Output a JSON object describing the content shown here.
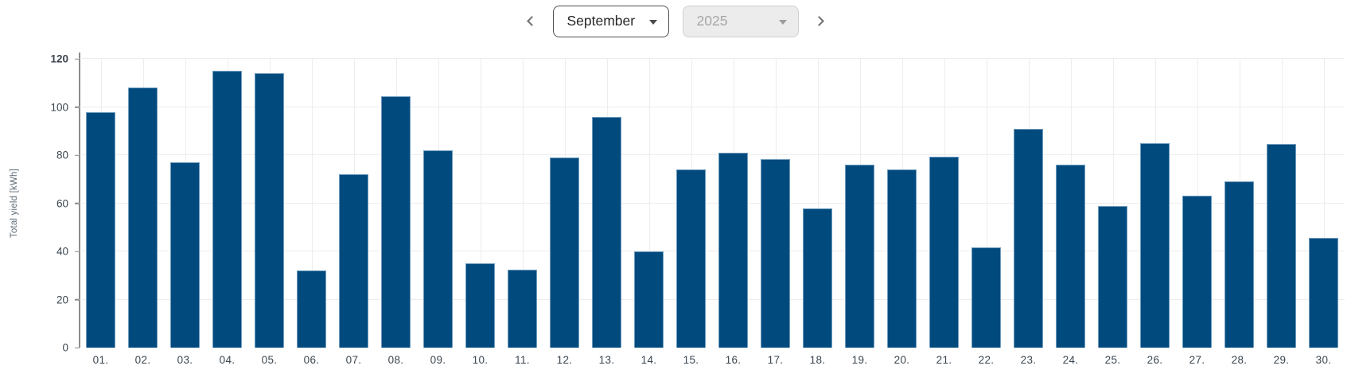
{
  "header": {
    "month_select": {
      "value": "September",
      "disabled": false
    },
    "year_select": {
      "value": "2025",
      "disabled": true
    }
  },
  "chart_data": {
    "type": "bar",
    "title": "",
    "xlabel": "",
    "ylabel": "Total yield [kWh]",
    "ylim": [
      0,
      120
    ],
    "yticks": [
      0,
      20,
      40,
      60,
      80,
      100,
      120
    ],
    "grid": true,
    "legend": false,
    "categories": [
      "01.",
      "02.",
      "03.",
      "04.",
      "05.",
      "06.",
      "07.",
      "08.",
      "09.",
      "10.",
      "11.",
      "12.",
      "13.",
      "14.",
      "15.",
      "16.",
      "17.",
      "18.",
      "19.",
      "20.",
      "21.",
      "22.",
      "23.",
      "24.",
      "25.",
      "26.",
      "27.",
      "28.",
      "29.",
      "30."
    ],
    "values": [
      98,
      108,
      77,
      115,
      114,
      32,
      72,
      104.5,
      82,
      35,
      32.5,
      79,
      96,
      40,
      74,
      81,
      78.5,
      58,
      76,
      74,
      79.5,
      41.5,
      91,
      76,
      59,
      85,
      63,
      69,
      84.5,
      45.5
    ]
  },
  "colors": {
    "bar_fill": "#004a7d",
    "bar_border": "#6e9cbe",
    "gridline": "#ededed",
    "axis_line": "#8c8c8c",
    "tick_text": "#3b4650",
    "y_title_text": "#5c6b78",
    "select_border_active": "#4f4f4f",
    "select_bg_disabled": "#ececec",
    "select_text_disabled": "#a6a6a6",
    "chevron": "#6e6e6e"
  }
}
